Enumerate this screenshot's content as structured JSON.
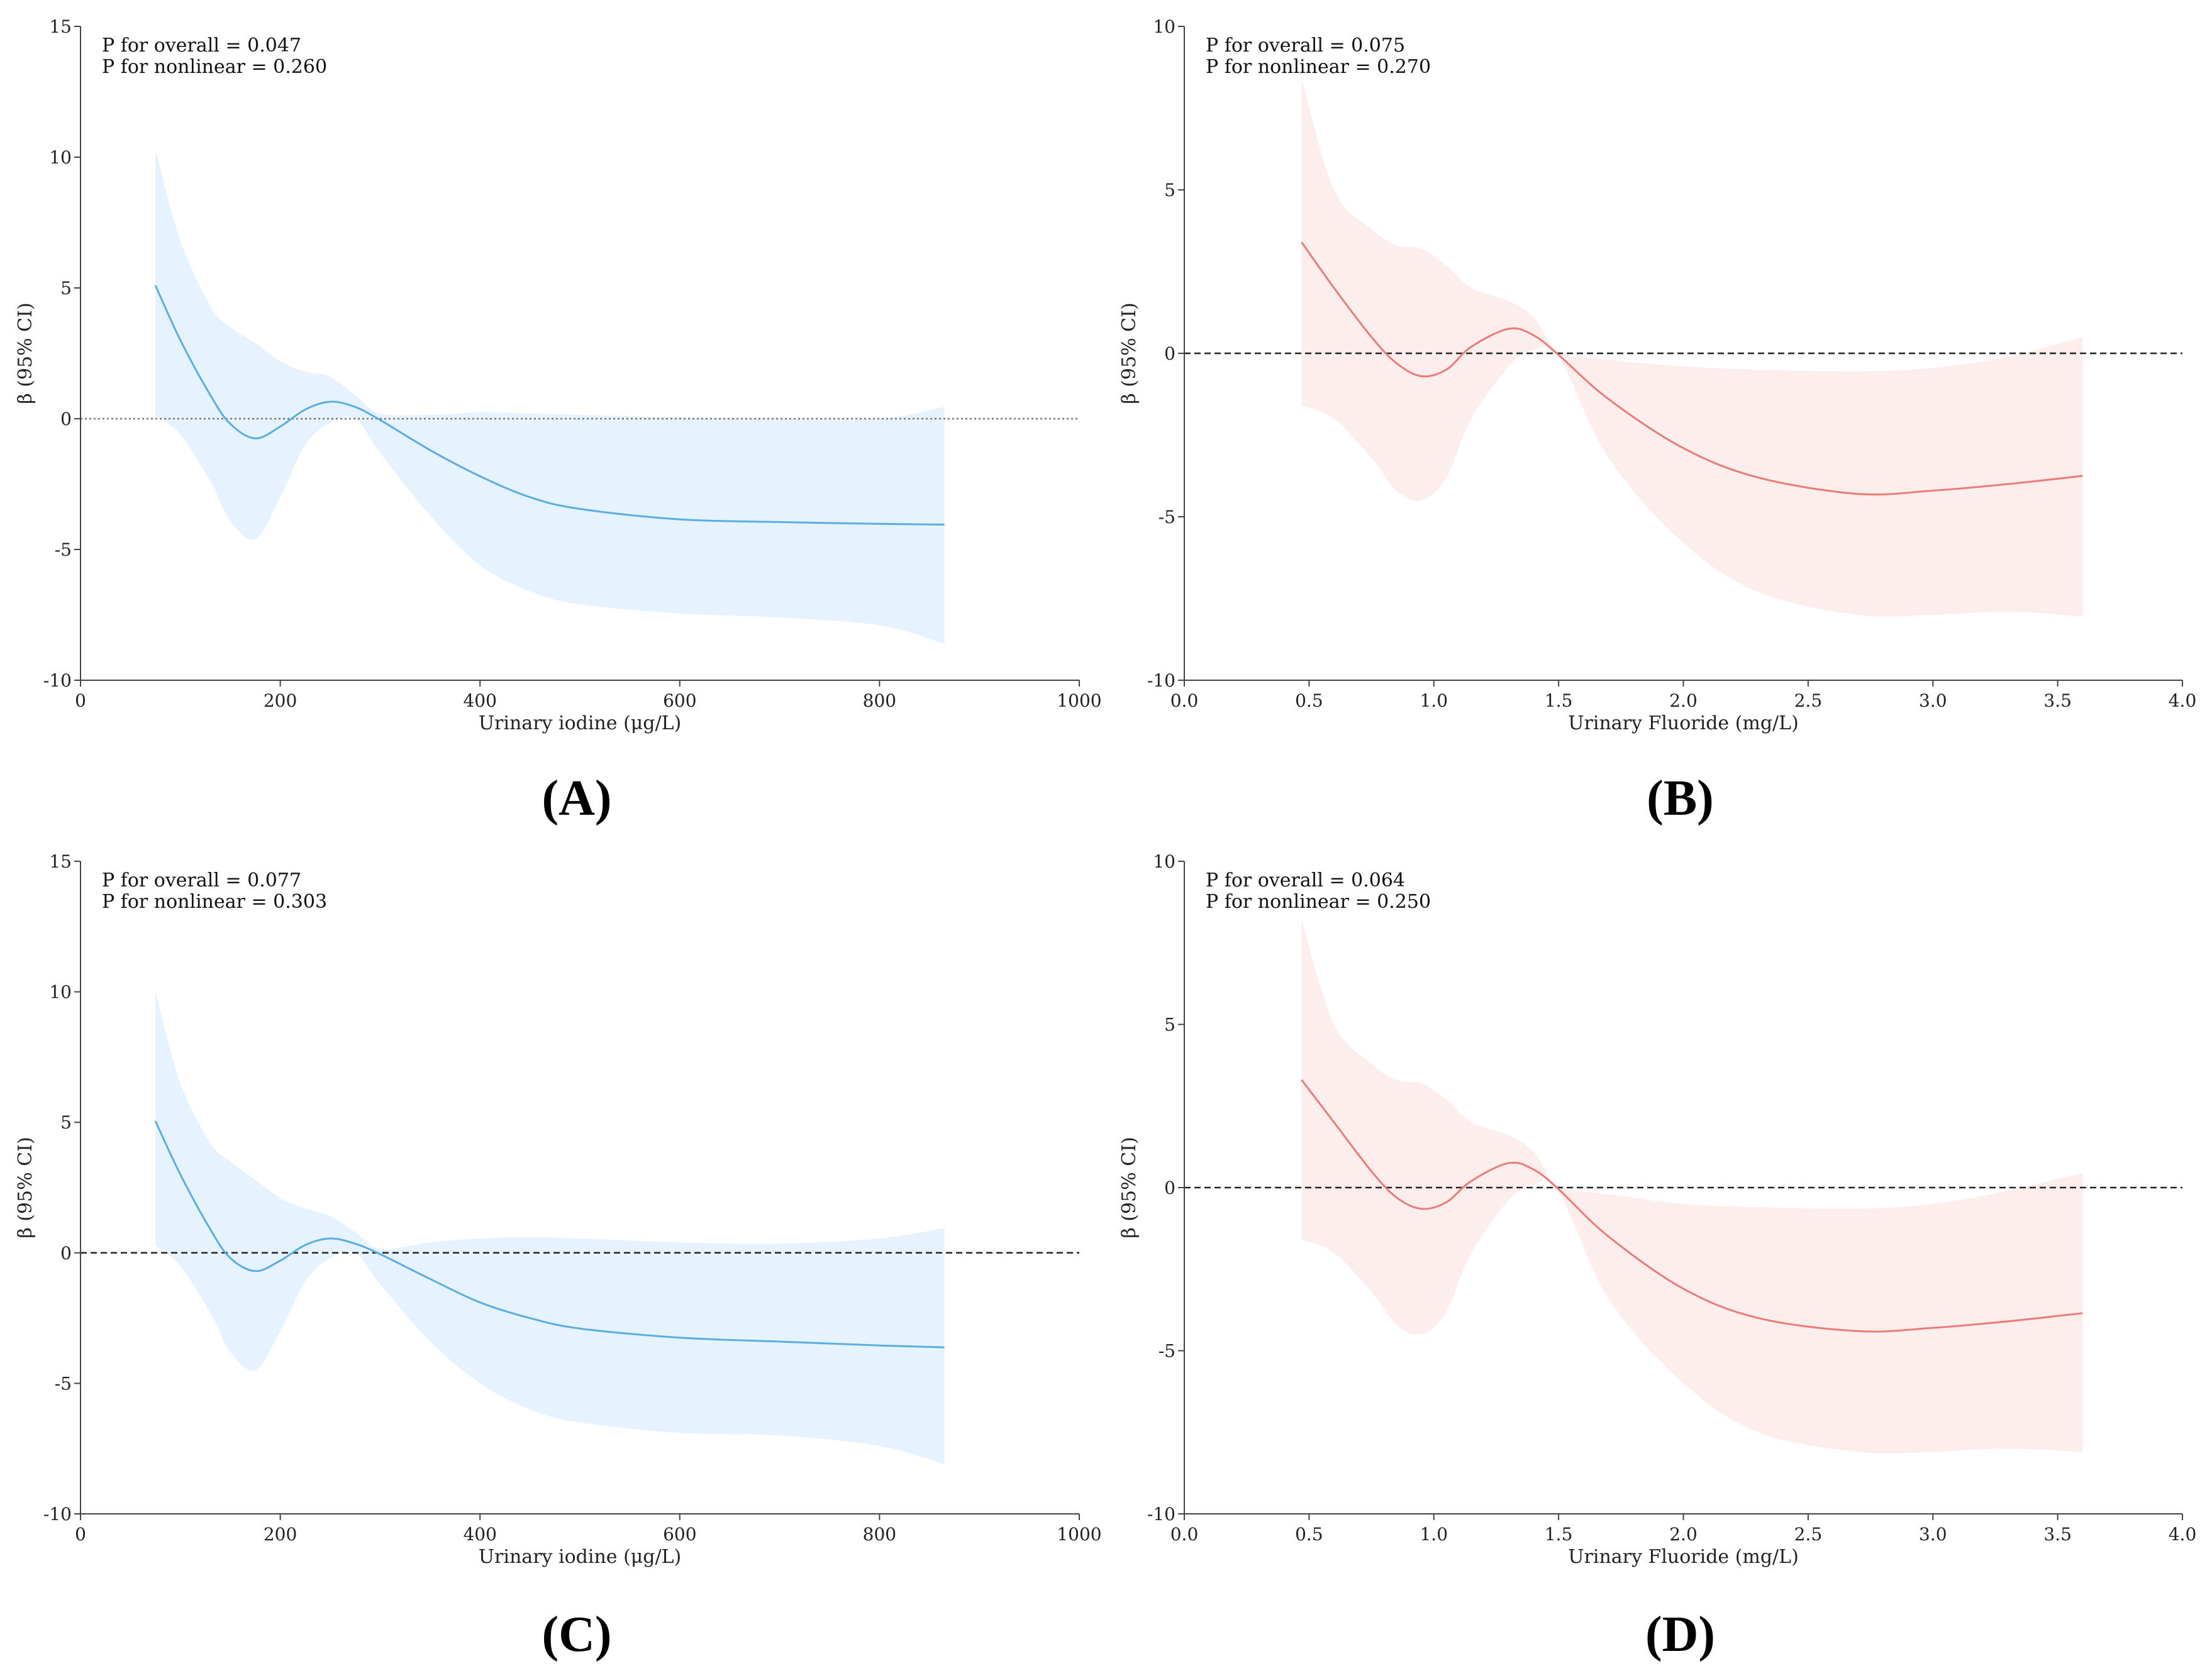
{
  "chart_data": [
    {
      "type": "line",
      "panel": "(A)",
      "annotations": [
        "P for overall = 0.047",
        "P for nonlinear = 0.260"
      ],
      "xlabel": "Urinary iodine (μg/L)",
      "ylabel": "β (95% CI)",
      "xlim": [
        0,
        1000
      ],
      "ylim": [
        -10,
        15
      ],
      "xticks": [
        0,
        200,
        400,
        600,
        800,
        1000
      ],
      "xtick_labels": [
        "0",
        "200",
        "400",
        "600",
        "800",
        "1000"
      ],
      "yticks": [
        -10,
        -5,
        0,
        5,
        10,
        15
      ],
      "ytick_labels": [
        "-10",
        "-5",
        "0",
        "5",
        "10",
        "15"
      ],
      "reference_line": {
        "y": 0,
        "style": "dotted"
      },
      "color": "#5aaee3",
      "fill_color": "#e6f2fd",
      "series": [
        {
          "name": "β estimate",
          "x": [
            75,
            100,
            130,
            150,
            175,
            200,
            225,
            250,
            275,
            300,
            350,
            400,
            450,
            500,
            600,
            700,
            800,
            865
          ],
          "y": [
            5.1,
            3.0,
            0.9,
            -0.2,
            -0.75,
            -0.3,
            0.35,
            0.65,
            0.45,
            -0.05,
            -1.2,
            -2.2,
            -3.0,
            -3.45,
            -3.85,
            -3.95,
            -4.02,
            -4.05
          ],
          "lower": [
            0.1,
            -0.6,
            -2.4,
            -3.9,
            -4.6,
            -3.0,
            -1.0,
            -0.15,
            0.0,
            -1.3,
            -3.7,
            -5.6,
            -6.6,
            -7.1,
            -7.45,
            -7.6,
            -7.9,
            -8.6
          ],
          "upper": [
            10.3,
            6.8,
            4.3,
            3.5,
            2.9,
            2.2,
            1.8,
            1.6,
            0.9,
            0.2,
            0.15,
            0.25,
            0.2,
            0.15,
            0.05,
            0.0,
            0.0,
            0.45
          ]
        }
      ]
    },
    {
      "type": "line",
      "panel": "(B)",
      "annotations": [
        "P for overall = 0.075",
        "P for nonlinear = 0.270"
      ],
      "xlabel": "Urinary Fluoride (mg/L)",
      "ylabel": "β (95% CI)",
      "xlim": [
        0.0,
        4.0
      ],
      "ylim": [
        -10,
        10
      ],
      "xticks": [
        0.0,
        0.5,
        1.0,
        1.5,
        2.0,
        2.5,
        3.0,
        3.5,
        4.0
      ],
      "xtick_labels": [
        "0.0",
        "0.5",
        "1.0",
        "1.5",
        "2.0",
        "2.5",
        "3.0",
        "3.5",
        "4.0"
      ],
      "yticks": [
        -10,
        -5,
        0,
        5,
        10
      ],
      "ytick_labels": [
        "-10",
        "-5",
        "0",
        "5",
        "10"
      ],
      "reference_line": {
        "y": 0,
        "style": "dashed"
      },
      "color": "#ec7b78",
      "fill_color": "#fdeeee",
      "series": [
        {
          "name": "β estimate",
          "x": [
            0.47,
            0.6,
            0.75,
            0.85,
            0.95,
            1.05,
            1.15,
            1.3,
            1.4,
            1.5,
            1.7,
            2.0,
            2.3,
            2.7,
            3.0,
            3.3,
            3.6
          ],
          "y": [
            3.4,
            2.0,
            0.5,
            -0.3,
            -0.7,
            -0.5,
            0.2,
            0.75,
            0.55,
            -0.05,
            -1.4,
            -2.9,
            -3.8,
            -4.3,
            -4.2,
            -4.0,
            -3.75
          ],
          "lower": [
            -1.6,
            -2.0,
            -3.2,
            -4.2,
            -4.5,
            -3.8,
            -2.0,
            -0.4,
            0.1,
            -0.1,
            -3.2,
            -5.8,
            -7.3,
            -8.0,
            -8.0,
            -7.9,
            -8.05
          ],
          "upper": [
            8.4,
            5.0,
            3.8,
            3.3,
            3.2,
            2.7,
            2.0,
            1.6,
            1.1,
            0.05,
            -0.2,
            -0.4,
            -0.5,
            -0.55,
            -0.45,
            -0.1,
            0.5
          ]
        }
      ]
    },
    {
      "type": "line",
      "panel": "(C)",
      "annotations": [
        "P for overall = 0.077",
        "P for nonlinear = 0.303"
      ],
      "xlabel": "Urinary iodine (μg/L)",
      "ylabel": "β (95% CI)",
      "xlim": [
        0,
        1000
      ],
      "ylim": [
        -10,
        15
      ],
      "xticks": [
        0,
        200,
        400,
        600,
        800,
        1000
      ],
      "xtick_labels": [
        "0",
        "200",
        "400",
        "600",
        "800",
        "1000"
      ],
      "yticks": [
        -10,
        -5,
        0,
        5,
        10,
        15
      ],
      "ytick_labels": [
        "-10",
        "-5",
        "0",
        "5",
        "10",
        "15"
      ],
      "reference_line": {
        "y": 0,
        "style": "dashed"
      },
      "color": "#5aaee3",
      "fill_color": "#e6f2fd",
      "series": [
        {
          "name": "β estimate",
          "x": [
            75,
            100,
            130,
            150,
            175,
            200,
            225,
            250,
            275,
            300,
            350,
            400,
            450,
            500,
            600,
            700,
            800,
            865
          ],
          "y": [
            5.05,
            3.0,
            0.9,
            -0.2,
            -0.7,
            -0.3,
            0.3,
            0.55,
            0.35,
            -0.05,
            -1.0,
            -1.9,
            -2.5,
            -2.9,
            -3.25,
            -3.4,
            -3.55,
            -3.62
          ],
          "lower": [
            0.3,
            -0.5,
            -2.3,
            -3.8,
            -4.5,
            -3.0,
            -1.1,
            -0.2,
            0.0,
            -1.2,
            -3.4,
            -5.0,
            -6.0,
            -6.5,
            -6.9,
            -7.0,
            -7.4,
            -8.1
          ],
          "upper": [
            10.0,
            6.5,
            4.2,
            3.5,
            2.8,
            2.1,
            1.7,
            1.4,
            0.8,
            0.15,
            0.4,
            0.55,
            0.6,
            0.55,
            0.4,
            0.35,
            0.55,
            0.95
          ]
        }
      ]
    },
    {
      "type": "line",
      "panel": "(D)",
      "annotations": [
        "P for overall = 0.064",
        "P for nonlinear = 0.250"
      ],
      "xlabel": "Urinary Fluoride (mg/L)",
      "ylabel": "β (95% CI)",
      "xlim": [
        0.0,
        4.0
      ],
      "ylim": [
        -10,
        10
      ],
      "xticks": [
        0.0,
        0.5,
        1.0,
        1.5,
        2.0,
        2.5,
        3.0,
        3.5,
        4.0
      ],
      "xtick_labels": [
        "0.0",
        "0.5",
        "1.0",
        "1.5",
        "2.0",
        "2.5",
        "3.0",
        "3.5",
        "4.0"
      ],
      "yticks": [
        -10,
        -5,
        0,
        5,
        10
      ],
      "ytick_labels": [
        "-10",
        "-5",
        "0",
        "5",
        "10"
      ],
      "reference_line": {
        "y": 0,
        "style": "dashed"
      },
      "color": "#ec7b78",
      "fill_color": "#fdeeee",
      "series": [
        {
          "name": "β estimate",
          "x": [
            0.47,
            0.6,
            0.75,
            0.85,
            0.95,
            1.05,
            1.15,
            1.3,
            1.4,
            1.5,
            1.7,
            2.0,
            2.3,
            2.7,
            3.0,
            3.3,
            3.6
          ],
          "y": [
            3.3,
            2.0,
            0.5,
            -0.3,
            -0.65,
            -0.45,
            0.2,
            0.75,
            0.55,
            -0.05,
            -1.5,
            -3.1,
            -4.0,
            -4.4,
            -4.3,
            -4.1,
            -3.85
          ],
          "lower": [
            -1.6,
            -2.0,
            -3.2,
            -4.2,
            -4.5,
            -3.8,
            -2.0,
            -0.4,
            0.1,
            -0.1,
            -3.4,
            -6.0,
            -7.5,
            -8.1,
            -8.1,
            -8.0,
            -8.1
          ],
          "upper": [
            8.2,
            5.0,
            3.8,
            3.3,
            3.2,
            2.7,
            2.0,
            1.6,
            1.1,
            0.05,
            -0.2,
            -0.5,
            -0.6,
            -0.65,
            -0.5,
            -0.1,
            0.45
          ]
        }
      ]
    }
  ]
}
